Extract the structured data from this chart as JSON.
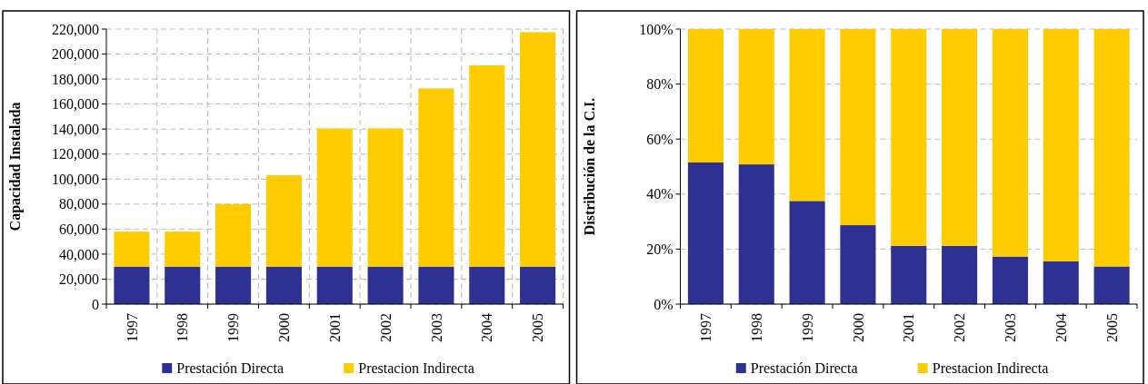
{
  "chart_data": [
    {
      "type": "bar",
      "stacked": true,
      "ylabel": "Capacidad Instalada",
      "categories": [
        "1997",
        "1998",
        "1999",
        "2000",
        "2001",
        "2002",
        "2003",
        "2004",
        "2005"
      ],
      "series": [
        {
          "name": "Prestación Directa",
          "color": "#2e3192",
          "values": [
            30000,
            30000,
            30000,
            30000,
            30000,
            30000,
            30000,
            30000,
            30000
          ]
        },
        {
          "name": "Prestacion Indirecta",
          "color": "#ffcc00",
          "values": [
            28000,
            28000,
            50000,
            73000,
            110500,
            110500,
            142500,
            161000,
            187500
          ]
        }
      ],
      "ylim": [
        0,
        220000
      ],
      "yticks": [
        {
          "value": 0,
          "label": "0"
        },
        {
          "value": 20000,
          "label": "20,000"
        },
        {
          "value": 40000,
          "label": "40,000"
        },
        {
          "value": 60000,
          "label": "60,000"
        },
        {
          "value": 80000,
          "label": "80,000"
        },
        {
          "value": 100000,
          "label": "100,000"
        },
        {
          "value": 120000,
          "label": "120,000"
        },
        {
          "value": 140000,
          "label": "140,000"
        },
        {
          "value": 160000,
          "label": "160,000"
        },
        {
          "value": 180000,
          "label": "180,000"
        },
        {
          "value": 200000,
          "label": "200,000"
        },
        {
          "value": 220000,
          "label": "220,000"
        }
      ],
      "grid": true,
      "legend": "bottom"
    },
    {
      "type": "bar",
      "stacked": true,
      "ylabel": "Distribución de la C.I.",
      "categories": [
        "1997",
        "1998",
        "1999",
        "2000",
        "2001",
        "2002",
        "2003",
        "2004",
        "2005"
      ],
      "series": [
        {
          "name": "Prestación Directa",
          "color": "#2e3192",
          "values": [
            51.5,
            50.8,
            37.5,
            28.7,
            21.2,
            21.2,
            17.3,
            15.6,
            13.7
          ]
        },
        {
          "name": "Prestacion Indirecta",
          "color": "#ffcc00",
          "values": [
            48.5,
            49.2,
            62.5,
            71.3,
            78.8,
            78.8,
            82.7,
            84.4,
            86.3
          ]
        }
      ],
      "ylim": [
        0,
        100
      ],
      "yticks": [
        {
          "value": 0,
          "label": "0%"
        },
        {
          "value": 20,
          "label": "20%"
        },
        {
          "value": 40,
          "label": "40%"
        },
        {
          "value": 60,
          "label": "60%"
        },
        {
          "value": 80,
          "label": "80%"
        },
        {
          "value": 100,
          "label": "100%"
        }
      ],
      "grid": "y",
      "legend": "bottom"
    }
  ]
}
